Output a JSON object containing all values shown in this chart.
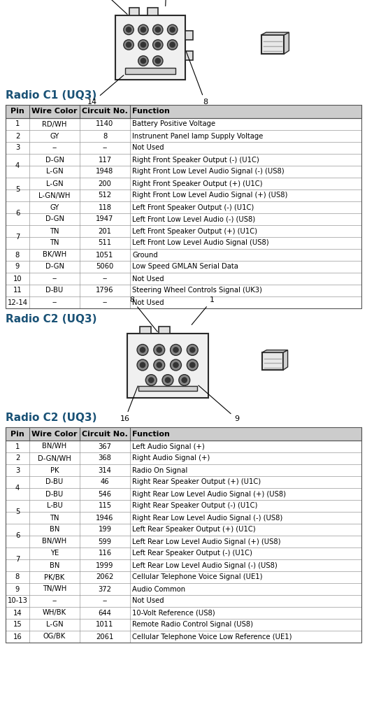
{
  "bg_color": "#ffffff",
  "c1_title": "Radio C1 (UQ3)",
  "c2_title": "Radio C2 (UQ3)",
  "title_color": "#1a5276",
  "col_headers": [
    "Pin",
    "Wire Color",
    "Circuit No.",
    "Function"
  ],
  "c1_rows": [
    [
      "1",
      "RD/WH",
      "1140",
      "Battery Positive Voltage"
    ],
    [
      "2",
      "GY",
      "8",
      "Instrunent Panel lamp Supply Voltage"
    ],
    [
      "3",
      "--",
      "--",
      "Not Used"
    ],
    [
      "4",
      "D-GN",
      "117",
      "Right Front Speaker Output (-) (U1C)"
    ],
    [
      "4",
      "L-GN",
      "1948",
      "Right Front Low Level Audio Signal (-) (US8)"
    ],
    [
      "5",
      "L-GN",
      "200",
      "Right Front Speaker Output (+) (U1C)"
    ],
    [
      "5",
      "L-GN/WH",
      "512",
      "Right Front Low Level Audio Signal (+) (US8)"
    ],
    [
      "6",
      "GY",
      "118",
      "Left Front Speaker Output (-) (U1C)"
    ],
    [
      "6",
      "D-GN",
      "1947",
      "Left Front Low Level Audio (-) (US8)"
    ],
    [
      "7",
      "TN",
      "201",
      "Left Front Speaker Output (+) (U1C)"
    ],
    [
      "7",
      "TN",
      "511",
      "Left Front Low Level Audio Signal (US8)"
    ],
    [
      "8",
      "BK/WH",
      "1051",
      "Ground"
    ],
    [
      "9",
      "D-GN",
      "5060",
      "Low Speed GMLAN Serial Data"
    ],
    [
      "10",
      "--",
      "--",
      "Not Used"
    ],
    [
      "11",
      "D-BU",
      "1796",
      "Steering Wheel Controls Signal (UK3)"
    ],
    [
      "12-14",
      "--",
      "--",
      "Not Used"
    ]
  ],
  "c2_rows": [
    [
      "1",
      "BN/WH",
      "367",
      "Left Audio Signal (+)"
    ],
    [
      "2",
      "D-GN/WH",
      "368",
      "Right Audio Signal (+)"
    ],
    [
      "3",
      "PK",
      "314",
      "Radio On Signal"
    ],
    [
      "4",
      "D-BU",
      "46",
      "Right Rear Speaker Output (+) (U1C)"
    ],
    [
      "4",
      "D-BU",
      "546",
      "Right Rear Low Level Audio Signal (+) (US8)"
    ],
    [
      "5",
      "L-BU",
      "115",
      "Right Rear Speaker Output (-) (U1C)"
    ],
    [
      "5",
      "TN",
      "1946",
      "Right Rear Low Level Audio Signal (-) (US8)"
    ],
    [
      "6",
      "BN",
      "199",
      "Left Rear Speaker Output (+) (U1C)"
    ],
    [
      "6",
      "BN/WH",
      "599",
      "Left Rear Low Level Audio Signal (+) (US8)"
    ],
    [
      "7",
      "YE",
      "116",
      "Left Rear Speaker Output (-) (U1C)"
    ],
    [
      "7",
      "BN",
      "1999",
      "Left Rear Low Level Audio Signal (-) (US8)"
    ],
    [
      "8",
      "PK/BK",
      "2062",
      "Cellular Telephone Voice Signal (UE1)"
    ],
    [
      "9",
      "TN/WH",
      "372",
      "Audio Common"
    ],
    [
      "10-13",
      "--",
      "--",
      "Not Used"
    ],
    [
      "14",
      "WH/BK",
      "644",
      "10-Volt Reference (US8)"
    ],
    [
      "15",
      "L-GN",
      "1011",
      "Remote Radio Control Signal (US8)"
    ],
    [
      "16",
      "OG/BK",
      "2061",
      "Cellular Telephone Voice Low Reference (UE1)"
    ]
  ]
}
